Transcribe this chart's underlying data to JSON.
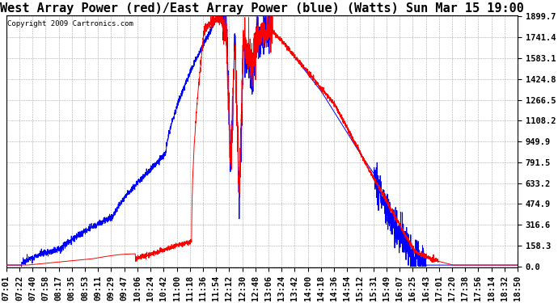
{
  "title": "West Array Power (red)/East Array Power (blue) (Watts) Sun Mar 15 19:00",
  "copyright": "Copyright 2009 Cartronics.com",
  "ymax": 1899.7,
  "yticks": [
    0.0,
    158.3,
    316.6,
    474.9,
    633.2,
    791.5,
    949.9,
    1108.2,
    1266.5,
    1424.8,
    1583.1,
    1741.4,
    1899.7
  ],
  "background_color": "#ffffff",
  "grid_color": "#aaaaaa",
  "red_color": "#ff0000",
  "blue_color": "#0000ff",
  "title_fontsize": 11,
  "tick_fontsize": 7.5,
  "xtick_labels": [
    "07:01",
    "07:22",
    "07:40",
    "07:58",
    "08:17",
    "08:35",
    "08:53",
    "09:11",
    "09:29",
    "09:47",
    "10:06",
    "10:24",
    "10:42",
    "11:00",
    "11:18",
    "11:36",
    "11:54",
    "12:12",
    "12:30",
    "12:48",
    "13:06",
    "13:24",
    "13:42",
    "14:00",
    "14:18",
    "14:36",
    "14:54",
    "15:12",
    "15:31",
    "15:49",
    "16:07",
    "16:25",
    "16:43",
    "17:01",
    "17:20",
    "17:38",
    "17:56",
    "18:14",
    "18:32",
    "18:50"
  ]
}
